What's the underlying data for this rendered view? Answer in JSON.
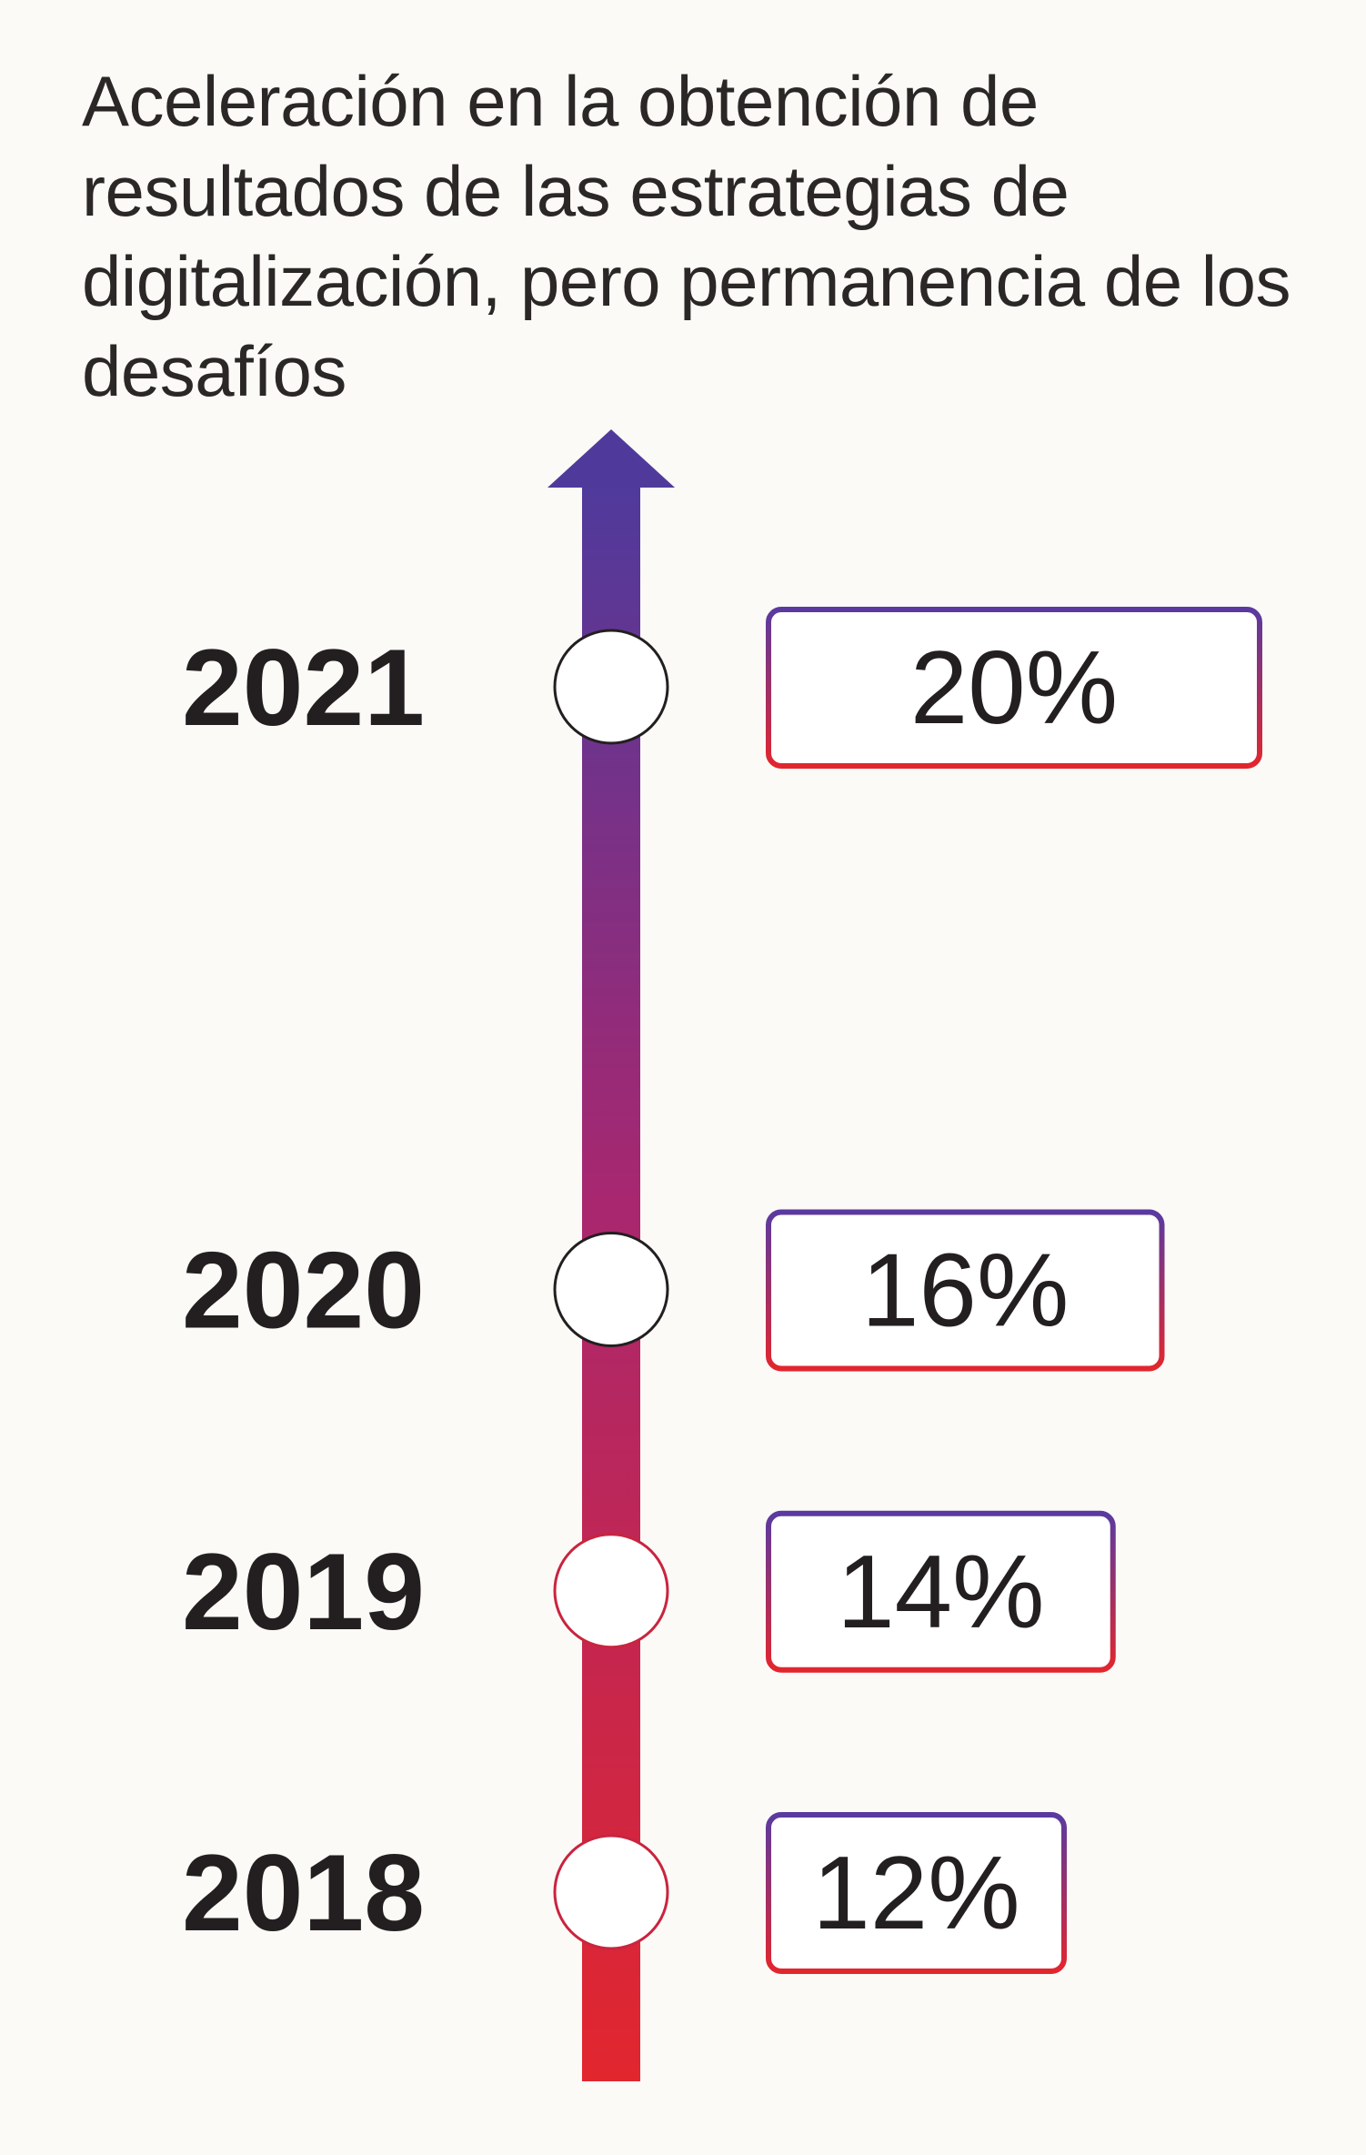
{
  "title": "Aceleración en la obtención de resultados de las estrategias de digitalización, pero permanencia de los desafíos",
  "colors": {
    "top": "#4f3a9c",
    "bottom": "#e2262e",
    "text": "#231f20"
  },
  "chart_data": {
    "type": "timeline",
    "title": "Aceleración en la obtención de resultados de las estrategias de digitalización, pero permanencia de los desafíos",
    "categories": [
      "2021",
      "2020",
      "2019",
      "2018"
    ],
    "values": [
      20,
      16,
      14,
      12
    ],
    "value_labels": [
      "20%",
      "16%",
      "14%",
      "12%"
    ],
    "ylim": [
      12,
      20
    ],
    "orientation": "vertical-upward-arrow"
  }
}
